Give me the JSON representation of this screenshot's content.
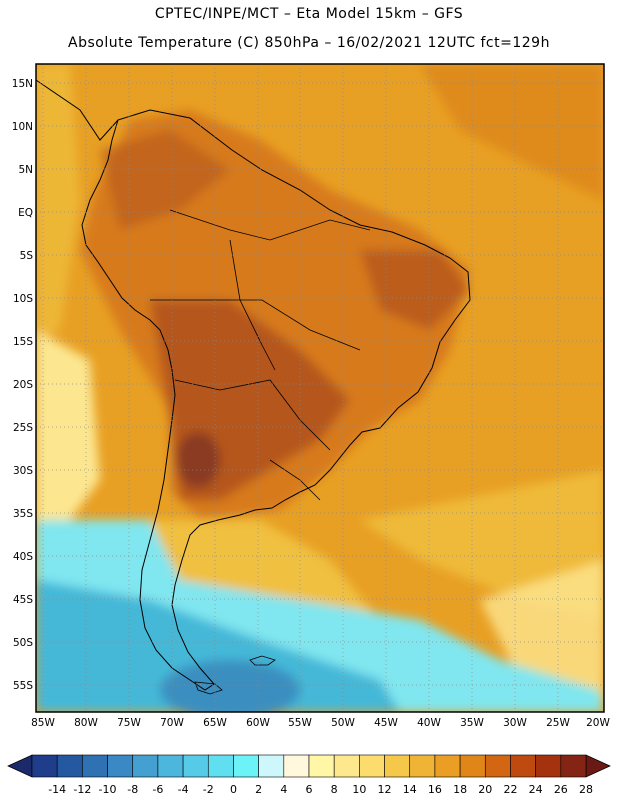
{
  "header": {
    "line1": "CPTEC/INPE/MCT –   Eta Model 15km – GFS",
    "line2": "Absolute Temperature (C) 850hPa – 16/02/2021 12UTC fct=129h"
  },
  "map": {
    "lat_ticks": [
      "15N",
      "10N",
      "5N",
      "EQ",
      "5S",
      "10S",
      "15S",
      "20S",
      "25S",
      "30S",
      "35S",
      "40S",
      "45S",
      "50S",
      "55S"
    ],
    "lon_ticks": [
      "85W",
      "80W",
      "75W",
      "70W",
      "65W",
      "60W",
      "55W",
      "50W",
      "45W",
      "40W",
      "35W",
      "30W",
      "25W",
      "20W"
    ],
    "colors": {
      "warm_sea": "#e8a024",
      "hot_land": "#d77a1a",
      "very_hot": "#b5561a",
      "core": "#8a3a22",
      "mild": "#f0c040",
      "cool": "#fce690",
      "cold": "#80e6ef",
      "colder": "#44b8d8",
      "coldest": "#3b8fc0"
    }
  },
  "colorbar": {
    "labels": [
      "-14",
      "-12",
      "-10",
      "-8",
      "-6",
      "-4",
      "-2",
      "0",
      "2",
      "4",
      "6",
      "8",
      "10",
      "12",
      "14",
      "16",
      "18",
      "20",
      "22",
      "24",
      "26",
      "28"
    ],
    "colors": [
      "#1f3d8a",
      "#2458a0",
      "#2f72b4",
      "#3a88c4",
      "#44a0d0",
      "#4db6dc",
      "#56cbe8",
      "#60dff0",
      "#6cf3f7",
      "#cdf7fb",
      "#fff8dc",
      "#fff6a6",
      "#fde88e",
      "#fbdc6c",
      "#f6c84a",
      "#efb436",
      "#ea9f24",
      "#e08618",
      "#d26612",
      "#bf4a10",
      "#a5320e",
      "#842414"
    ],
    "left_arrow_color": "#1c2a6a",
    "right_arrow_color": "#6a1a14"
  }
}
